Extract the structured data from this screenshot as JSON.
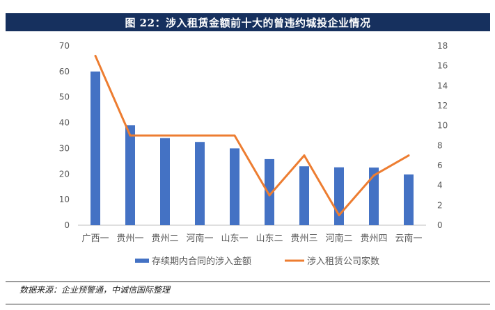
{
  "title": "图 22：涉入租赁金额前十大的曾违约城投企业情况",
  "source": "数据来源：企业预警通，中诚信国际整理",
  "colors": {
    "bar": "#4472c4",
    "line": "#ed7d31",
    "title_bg": "#16305e",
    "axis_text": "#595959"
  },
  "chart_data": {
    "type": "bar+line",
    "categories": [
      "广西一",
      "贵州一",
      "贵州二",
      "河南一",
      "山东一",
      "山东二",
      "贵州三",
      "河南二",
      "贵州四",
      "云南一"
    ],
    "series": [
      {
        "name": "存续期内合同的涉入金额",
        "type": "bar",
        "axis": "left",
        "values": [
          60,
          39,
          34,
          32.5,
          30,
          25.8,
          23,
          22.6,
          22.5,
          19.8
        ]
      },
      {
        "name": "涉入租赁公司家数",
        "type": "line",
        "axis": "right",
        "values": [
          17,
          9,
          9,
          9,
          9,
          3,
          7,
          1,
          5,
          7
        ]
      }
    ],
    "y_left": {
      "ticks": [
        0,
        10,
        20,
        30,
        40,
        50,
        60,
        70
      ],
      "ylim": [
        0,
        70
      ]
    },
    "y_right": {
      "ticks": [
        0,
        2,
        4,
        6,
        8,
        10,
        12,
        14,
        16,
        18
      ],
      "ylim": [
        0,
        18
      ]
    },
    "legend_position": "bottom",
    "grid": false
  }
}
